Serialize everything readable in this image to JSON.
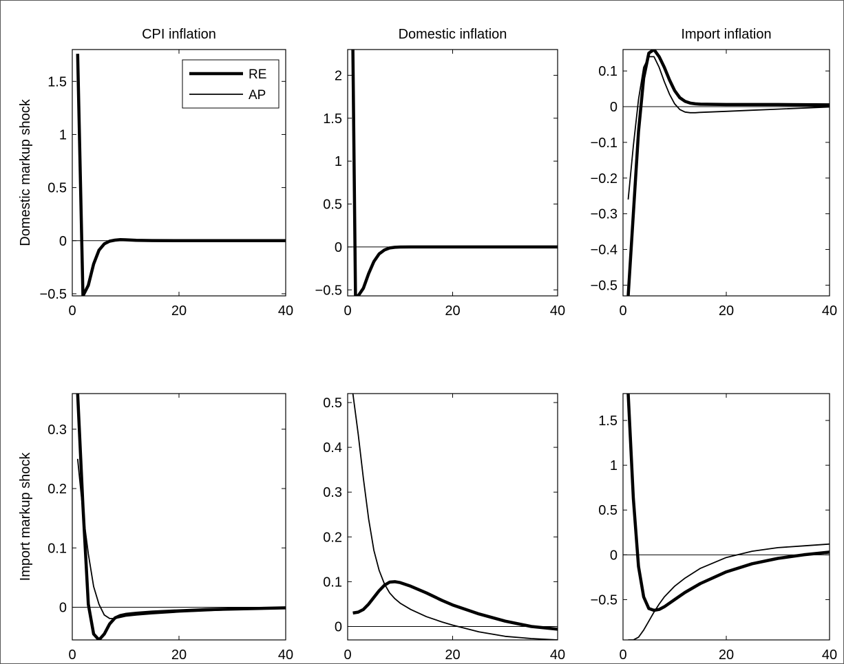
{
  "chart_data": {
    "type": "line",
    "column_titles": [
      "CPI inflation",
      "Domestic inflation",
      "Import inflation"
    ],
    "row_labels": [
      "Domestic markup shock",
      "Import markup shock"
    ],
    "legend": [
      "RE",
      "AP"
    ],
    "legend_placement": "top-right of first panel",
    "grid": false,
    "panels": [
      {
        "row": 0,
        "col": 0,
        "xlim": [
          0,
          40
        ],
        "ylim": [
          -0.52,
          1.8
        ],
        "xticks": [
          0,
          20,
          40
        ],
        "yticks": [
          -0.5,
          0,
          0.5,
          1,
          1.5
        ],
        "yticklabels": [
          "−0.5",
          "0",
          "0.5",
          "1",
          "1.5"
        ],
        "series": [
          {
            "name": "RE",
            "x": [
              1,
              2,
              3,
              4,
              5,
              6,
              7,
              8,
              9,
              10,
              12,
              15,
              20,
              25,
              30,
              40
            ],
            "y": [
              1.76,
              -0.52,
              -0.42,
              -0.22,
              -0.09,
              -0.03,
              -0.005,
              0.005,
              0.01,
              0.008,
              0.003,
              0.001,
              0,
              0,
              0,
              0
            ]
          },
          {
            "name": "AP",
            "x": [
              1,
              2,
              3,
              4,
              5,
              6,
              7,
              8,
              9,
              10,
              12,
              15,
              20,
              25,
              30,
              40
            ],
            "y": [
              1.74,
              -0.5,
              -0.41,
              -0.21,
              -0.085,
              -0.028,
              -0.004,
              0.006,
              0.01,
              0.007,
              0.003,
              0.001,
              0,
              0,
              0,
              0
            ]
          }
        ]
      },
      {
        "row": 0,
        "col": 1,
        "xlim": [
          0,
          40
        ],
        "ylim": [
          -0.57,
          2.3
        ],
        "xticks": [
          0,
          20,
          40
        ],
        "yticks": [
          -0.5,
          0,
          0.5,
          1,
          1.5,
          2
        ],
        "yticklabels": [
          "−0.5",
          "0",
          "0.5",
          "1",
          "1.5",
          "2"
        ],
        "series": [
          {
            "name": "RE",
            "x": [
              1,
              1.5,
              2,
              3,
              4,
              5,
              6,
              7,
              8,
              9,
              10,
              12,
              15,
              20,
              25,
              30,
              40
            ],
            "y": [
              2.3,
              -0.57,
              -0.57,
              -0.48,
              -0.31,
              -0.17,
              -0.08,
              -0.035,
              -0.012,
              -0.004,
              -0.001,
              0,
              0,
              0,
              0,
              0,
              0
            ]
          },
          {
            "name": "AP",
            "x": [
              1,
              1.5,
              2,
              3,
              4,
              5,
              6,
              7,
              8,
              9,
              10,
              12,
              15,
              20,
              25,
              30,
              40
            ],
            "y": [
              2.28,
              -0.56,
              -0.56,
              -0.47,
              -0.3,
              -0.16,
              -0.075,
              -0.03,
              -0.01,
              -0.003,
              -0.001,
              0,
              0,
              0,
              0,
              0,
              0
            ]
          }
        ]
      },
      {
        "row": 0,
        "col": 2,
        "xlim": [
          0,
          40
        ],
        "ylim": [
          -0.53,
          0.16
        ],
        "xticks": [
          0,
          20,
          40
        ],
        "yticks": [
          -0.5,
          -0.4,
          -0.3,
          -0.2,
          -0.1,
          0,
          0.1
        ],
        "yticklabels": [
          "−0.5",
          "−0.4",
          "−0.3",
          "−0.2",
          "−0.1",
          "0",
          "0.1"
        ],
        "series": [
          {
            "name": "RE",
            "x": [
              1,
              2,
              3,
              4,
              5,
              6,
              7,
              8,
              9,
              10,
              11,
              12,
              13,
              14,
              15,
              20,
              25,
              30,
              40
            ],
            "y": [
              -0.53,
              -0.3,
              -0.07,
              0.08,
              0.15,
              0.16,
              0.14,
              0.11,
              0.075,
              0.045,
              0.025,
              0.015,
              0.01,
              0.008,
              0.007,
              0.006,
              0.006,
              0.006,
              0.005
            ]
          },
          {
            "name": "AP",
            "x": [
              1,
              2,
              3,
              4,
              5,
              6,
              7,
              8,
              9,
              10,
              11,
              12,
              13,
              14,
              15,
              20,
              25,
              30,
              40
            ],
            "y": [
              -0.26,
              -0.11,
              0.02,
              0.11,
              0.14,
              0.14,
              0.11,
              0.07,
              0.035,
              0.008,
              -0.008,
              -0.015,
              -0.017,
              -0.017,
              -0.016,
              -0.013,
              -0.01,
              -0.007,
              -0.001
            ]
          }
        ]
      },
      {
        "row": 1,
        "col": 0,
        "xlim": [
          0,
          40
        ],
        "ylim": [
          -0.055,
          0.36
        ],
        "xticks": [
          0,
          20,
          40
        ],
        "yticks": [
          0,
          0.1,
          0.2,
          0.3
        ],
        "yticklabels": [
          "0",
          "0.1",
          "0.2",
          "0.3"
        ],
        "series": [
          {
            "name": "RE",
            "x": [
              1,
              2,
              3,
              4,
              5,
              6,
              7,
              8,
              9,
              10,
              12,
              15,
              20,
              25,
              30,
              40
            ],
            "y": [
              0.36,
              0.17,
              0.005,
              -0.045,
              -0.055,
              -0.045,
              -0.028,
              -0.018,
              -0.014,
              -0.012,
              -0.01,
              -0.008,
              -0.006,
              -0.004,
              -0.003,
              -0.001
            ]
          },
          {
            "name": "AP",
            "x": [
              1,
              2,
              3,
              4,
              5,
              6,
              7,
              8,
              9,
              10,
              12,
              15,
              20,
              25,
              30,
              40
            ],
            "y": [
              0.25,
              0.16,
              0.09,
              0.035,
              0.005,
              -0.013,
              -0.019,
              -0.019,
              -0.017,
              -0.015,
              -0.013,
              -0.011,
              -0.008,
              -0.006,
              -0.004,
              -0.002
            ]
          }
        ]
      },
      {
        "row": 1,
        "col": 1,
        "xlim": [
          0,
          40
        ],
        "ylim": [
          -0.03,
          0.52
        ],
        "xticks": [
          0,
          20,
          40
        ],
        "yticks": [
          0,
          0.1,
          0.2,
          0.3,
          0.4,
          0.5
        ],
        "yticklabels": [
          "0",
          "0.1",
          "0.2",
          "0.3",
          "0.4",
          "0.5"
        ],
        "series": [
          {
            "name": "RE",
            "x": [
              1,
              2,
              3,
              4,
              5,
              6,
              7,
              8,
              9,
              10,
              12,
              15,
              18,
              20,
              25,
              30,
              35,
              40
            ],
            "y": [
              0.03,
              0.032,
              0.038,
              0.05,
              0.065,
              0.08,
              0.092,
              0.099,
              0.1,
              0.098,
              0.09,
              0.075,
              0.058,
              0.048,
              0.028,
              0.012,
              0.0,
              -0.006
            ]
          },
          {
            "name": "AP",
            "x": [
              1,
              2,
              3,
              4,
              5,
              6,
              7,
              8,
              9,
              10,
              12,
              15,
              18,
              20,
              25,
              30,
              35,
              40
            ],
            "y": [
              0.52,
              0.43,
              0.33,
              0.24,
              0.17,
              0.125,
              0.095,
              0.075,
              0.062,
              0.052,
              0.038,
              0.022,
              0.01,
              0.003,
              -0.012,
              -0.022,
              -0.027,
              -0.03
            ]
          }
        ]
      },
      {
        "row": 1,
        "col": 2,
        "xlim": [
          0,
          40
        ],
        "ylim": [
          -0.95,
          1.8
        ],
        "xticks": [
          0,
          20,
          40
        ],
        "yticks": [
          -0.5,
          0,
          0.5,
          1,
          1.5
        ],
        "yticklabels": [
          "−0.5",
          "0",
          "0.5",
          "1",
          "1.5"
        ],
        "series": [
          {
            "name": "RE",
            "x": [
              1,
              2,
              3,
              4,
              5,
              6,
              7,
              8,
              10,
              12,
              15,
              20,
              25,
              30,
              35,
              40
            ],
            "y": [
              1.8,
              0.63,
              -0.13,
              -0.47,
              -0.6,
              -0.62,
              -0.61,
              -0.58,
              -0.5,
              -0.42,
              -0.32,
              -0.19,
              -0.1,
              -0.04,
              0.0,
              0.03
            ]
          },
          {
            "name": "AP",
            "x": [
              1,
              2,
              3,
              4,
              5,
              6,
              7,
              8,
              10,
              12,
              15,
              20,
              25,
              30,
              35,
              40
            ],
            "y": [
              -0.95,
              -0.95,
              -0.92,
              -0.84,
              -0.74,
              -0.64,
              -0.55,
              -0.47,
              -0.35,
              -0.26,
              -0.15,
              -0.03,
              0.04,
              0.08,
              0.1,
              0.12
            ]
          }
        ]
      }
    ]
  }
}
